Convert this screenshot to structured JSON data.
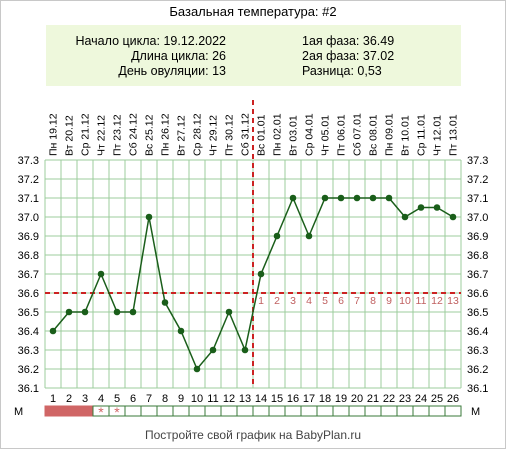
{
  "title": "Базальная температура: #2",
  "info": {
    "cycle_start": "Начало цикла: 19.12.2022",
    "cycle_length": "Длина цикла: 26",
    "ovulation_day": "День овуляции: 13",
    "phase1": "1ая фаза: 36.49",
    "phase2": "2ая фаза: 37.02",
    "difference": "Разница: 0,53"
  },
  "footer": "Постройте свой график на BabyPlan.ru",
  "m_label": "М",
  "colors": {
    "line": "#1a5e1a",
    "grid": "#9ccc9c",
    "reference": "#cc2222",
    "post_ovulation_numbers": "#c06060",
    "menses_fill": "#d06666",
    "info_bg": "#eef8dc"
  },
  "chart_data": {
    "type": "line",
    "ylim": [
      36.1,
      37.3
    ],
    "y_ticks": [
      "36.1",
      "36.2",
      "36.3",
      "36.4",
      "36.5",
      "36.6",
      "36.7",
      "36.8",
      "36.9",
      "37.0",
      "37.1",
      "37.2",
      "37.3"
    ],
    "days": [
      1,
      2,
      3,
      4,
      5,
      6,
      7,
      8,
      9,
      10,
      11,
      12,
      13,
      14,
      15,
      16,
      17,
      18,
      19,
      20,
      21,
      22,
      23,
      24,
      25,
      26
    ],
    "dates": [
      "Пн 19.12",
      "Вт 20.12",
      "Ср 21.12",
      "Чт 22.12",
      "Пт 23.12",
      "Сб 24.12",
      "Вс 25.12",
      "Пн 26.12",
      "Вт 27.12",
      "Ср 28.12",
      "Чт 29.12",
      "Пт 30.12",
      "Сб 31.12",
      "Вс 01.01",
      "Пн 02.01",
      "Вт 03.01",
      "Ср 04.01",
      "Чт 05.01",
      "Пт 06.01",
      "Сб 07.01",
      "Вс 08.01",
      "Пн 09.01",
      "Вт 10.01",
      "Ср 11.01",
      "Чт 12.01",
      "Пт 13.01"
    ],
    "values": [
      36.4,
      36.5,
      36.5,
      36.7,
      36.5,
      36.5,
      37.0,
      36.55,
      36.4,
      36.2,
      36.3,
      36.5,
      36.3,
      36.7,
      36.9,
      37.1,
      36.9,
      37.1,
      37.1,
      37.1,
      37.1,
      37.1,
      37.0,
      37.05,
      37.05,
      37.0
    ],
    "coverline": 36.6,
    "ovulation_day": 13,
    "post_ovulation_days": [
      "1",
      "2",
      "3",
      "4",
      "5",
      "6",
      "7",
      "8",
      "9",
      "10",
      "11",
      "12",
      "13"
    ],
    "menses_days": [
      1,
      2,
      3
    ],
    "spotting_days": [
      4,
      5
    ],
    "spotting_marker": "*",
    "grid": true
  }
}
